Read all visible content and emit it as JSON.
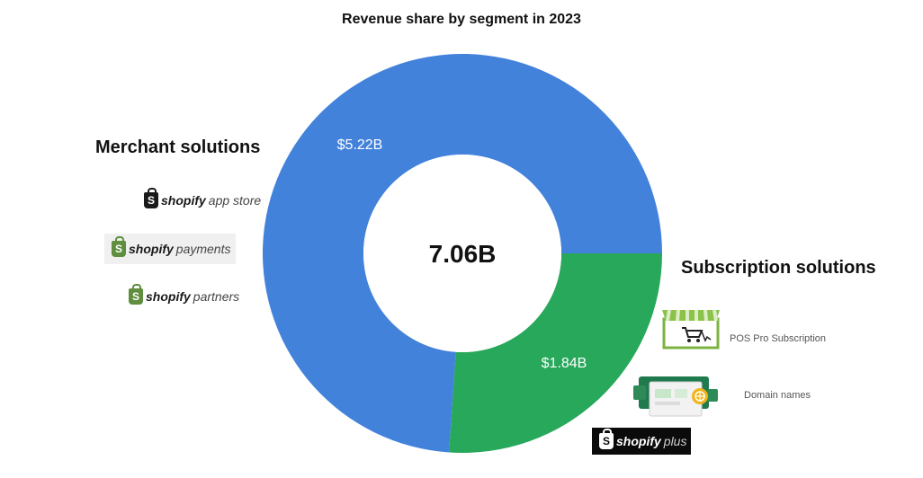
{
  "chart_data": {
    "type": "pie",
    "title": "Revenue share by segment in 2023",
    "center_label": "7.06B",
    "segments": [
      {
        "name": "Merchant solutions",
        "value": 5.22,
        "label": "$5.22B"
      },
      {
        "name": "Subscription solutions",
        "value": 1.84,
        "label": "$1.84B"
      }
    ]
  },
  "colors": {
    "merchant": "#4282db",
    "subscription": "#27a85a",
    "shopify_green": "#5e8e3e"
  },
  "merchant_logos": [
    {
      "brand": "shopify",
      "sub": "app store",
      "icon": "shopify-bag-icon"
    },
    {
      "brand": "shopify",
      "sub": "payments",
      "icon": "shopify-bag-icon"
    },
    {
      "brand": "shopify",
      "sub": "partners",
      "icon": "shopify-bag-icon"
    }
  ],
  "subscription_items": [
    {
      "label": "POS Pro Subscription",
      "icon": "storefront-cart-icon"
    },
    {
      "label": "Domain names",
      "icon": "domain-globe-icon"
    }
  ],
  "plus_logo": {
    "brand": "shopify",
    "sub": "plus",
    "icon": "shopify-bag-icon"
  }
}
